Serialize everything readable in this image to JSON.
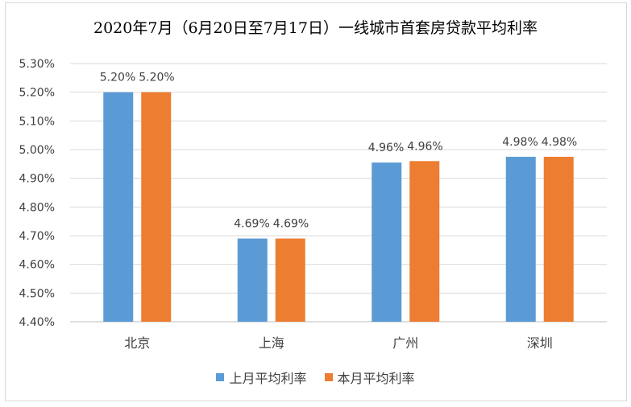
{
  "chart_data": {
    "type": "bar",
    "title": "2020年7月（6月20日至7月17日）一线城市首套房贷款平均利率",
    "categories": [
      "北京",
      "上海",
      "广州",
      "深圳"
    ],
    "series": [
      {
        "name": "上月平均利率",
        "color": "#5b9bd5",
        "values": [
          5.2,
          4.69,
          4.955,
          4.975
        ],
        "labels": [
          "5.20%",
          "4.69%",
          "4.96%",
          "4.98%"
        ]
      },
      {
        "name": "本月平均利率",
        "color": "#ed7d31",
        "values": [
          5.2,
          4.69,
          4.96,
          4.975
        ],
        "labels": [
          "5.20%",
          "4.69%",
          "4.96%",
          "4.98%"
        ]
      }
    ],
    "ylim": [
      4.4,
      5.3
    ],
    "yticks": [
      "4.40%",
      "4.50%",
      "4.60%",
      "4.70%",
      "4.80%",
      "4.90%",
      "5.00%",
      "5.10%",
      "5.20%",
      "5.30%"
    ],
    "grid": true,
    "legend_position": "bottom"
  }
}
